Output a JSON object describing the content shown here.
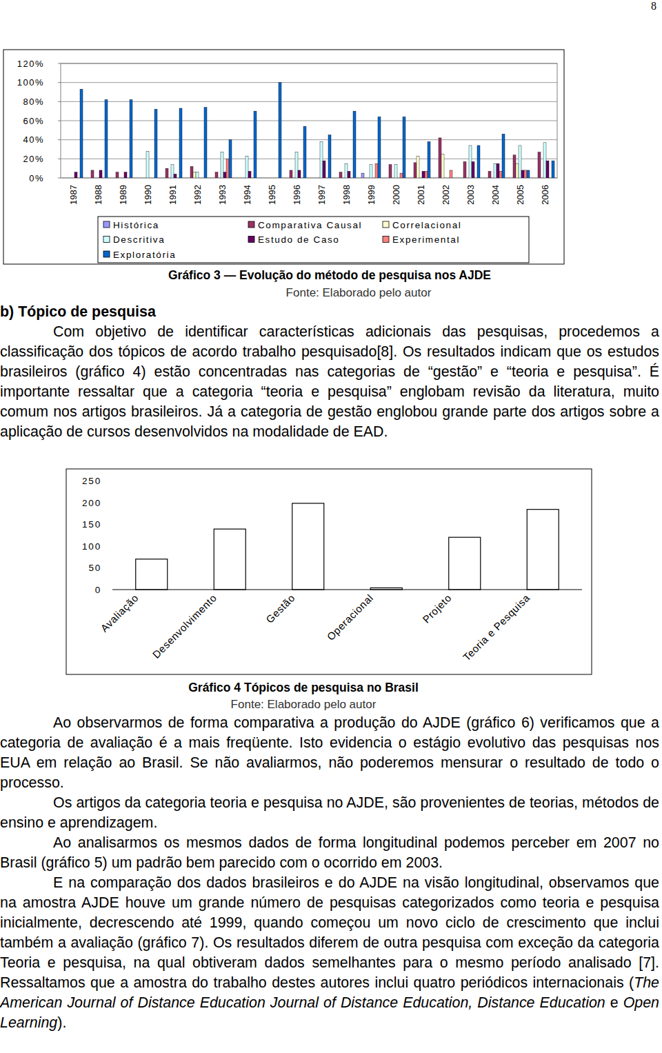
{
  "document": {
    "page_number": "8",
    "heading": "b) Tópico de pesquisa",
    "paragraphs_1": [
      "Com objetivo de identificar características adicionais das pesquisas, procedemos a classificação dos tópicos de acordo trabalho pesquisado[8]. Os resultados indicam que os estudos brasileiros (gráfico 4) estão concentradas nas categorias de “gestão” e “teoria e pesquisa”. É importante ressaltar que a categoria “teoria e pesquisa” englobam revisão da literatura, muito comum nos artigos brasileiros. Já a categoria de gestão englobou grande parte dos artigos sobre a aplicação de cursos desenvolvidos na modalidade de EAD."
    ],
    "paragraphs_2": [
      "Ao observarmos de forma comparativa a produção do AJDE (gráfico 6) verificamos que a categoria de avaliação é a mais freqüente. Isto evidencia o estágio evolutivo das pesquisas nos EUA em relação ao Brasil. Se não avaliarmos, não poderemos mensurar o resultado de todo o processo.",
      "Os artigos da categoria teoria e pesquisa no AJDE, são provenientes de teorias, métodos de ensino e aprendizagem.",
      "Ao analisarmos os mesmos dados de forma longitudinal podemos perceber em 2007 no Brasil (gráfico 5) um padrão bem parecido com o ocorrido em 2003.",
      [
        {
          "text": "E na comparação dos dados brasileiros e do AJDE na visão longitudinal, observamos que na amostra AJDE houve um grande número de pesquisas categorizados como teoria e pesquisa inicialmente, decrescendo até 1999, quando começou um novo ciclo de crescimento que inclui também a avaliação (gráfico 7). Os resultados diferem de outra pesquisa com exceção da categoria Teoria e pesquisa, na qual obtiveram dados semelhantes para o mesmo período analisado [7]. Ressaltamos que a amostra do trabalho destes autores inclui quatro periódicos internacionais (",
          "italic": false
        },
        {
          "text": "The American Journal of Distance Education Journal of Distance Education, Distance Education",
          "italic": true
        },
        {
          "text": " e ",
          "italic": false
        },
        {
          "text": "Open Learning",
          "italic": true
        },
        {
          "text": ").",
          "italic": false
        }
      ]
    ]
  },
  "chart_data": [
    {
      "type": "bar",
      "title": "Gráfico 3 — Evolução do método de pesquisa nos AJDE",
      "subtitle": "Fonte: Elaborado pelo autor",
      "categories": [
        "1987",
        "1988",
        "1989",
        "1990",
        "1991",
        "1992",
        "1993",
        "1994",
        "1995",
        "1996",
        "1997",
        "1998",
        "1999",
        "2000",
        "2001",
        "2002",
        "2003",
        "2004",
        "2005",
        "2006"
      ],
      "series": [
        {
          "name": "Histórica",
          "color": "#9999ff",
          "values": [
            0,
            0,
            0,
            0,
            0,
            0,
            0,
            0,
            0,
            0,
            0,
            0,
            5,
            0,
            0,
            0,
            0,
            0,
            0,
            0
          ]
        },
        {
          "name": "Comparativa Causal",
          "color": "#993366",
          "values": [
            0,
            8,
            6,
            0,
            10,
            12,
            6,
            0,
            0,
            8,
            0,
            6,
            0,
            14,
            16,
            42,
            17,
            7,
            24,
            27
          ]
        },
        {
          "name": "Correlacional",
          "color": "#ffffcc",
          "values": [
            0,
            0,
            0,
            0,
            0,
            6,
            0,
            0,
            0,
            0,
            0,
            0,
            0,
            0,
            23,
            25,
            0,
            0,
            15,
            0
          ]
        },
        {
          "name": "Descritiva",
          "color": "#ccffff",
          "values": [
            0,
            0,
            0,
            28,
            14,
            6,
            27,
            23,
            0,
            27,
            38,
            15,
            14,
            14,
            0,
            0,
            34,
            15,
            34,
            37
          ]
        },
        {
          "name": "Estudo de Caso",
          "color": "#660066",
          "values": [
            6,
            8,
            6,
            0,
            4,
            0,
            6,
            7,
            0,
            8,
            18,
            7,
            0,
            0,
            7,
            0,
            17,
            15,
            8,
            18
          ]
        },
        {
          "name": "Experimental",
          "color": "#ff8080",
          "values": [
            0,
            0,
            0,
            0,
            0,
            0,
            20,
            0,
            0,
            0,
            0,
            0,
            15,
            5,
            7,
            8,
            0,
            7,
            8,
            0
          ]
        },
        {
          "name": "Exploratória",
          "color": "#0066cc",
          "values": [
            93,
            82,
            82,
            72,
            73,
            74,
            40,
            70,
            100,
            54,
            45,
            70,
            64,
            64,
            38,
            0,
            34,
            46,
            8,
            18
          ]
        }
      ],
      "ylim": [
        0,
        120
      ],
      "yticks": [
        {
          "value": 0,
          "label": "0%"
        },
        {
          "value": 20,
          "label": "20%"
        },
        {
          "value": 40,
          "label": "40%"
        },
        {
          "value": 60,
          "label": "60%"
        },
        {
          "value": 80,
          "label": "80%"
        },
        {
          "value": 100,
          "label": "100%"
        },
        {
          "value": 120,
          "label": "120%"
        }
      ],
      "grid": true,
      "legend": "bottom"
    },
    {
      "type": "bar",
      "title": "Gráfico 4 Tópicos de pesquisa no Brasil",
      "subtitle": "Fonte: Elaborado pelo autor",
      "categories": [
        "Avaliação",
        "Desenvolvimento",
        "Gestão",
        "Operacional",
        "Projeto",
        "Teoria e Pesquisa"
      ],
      "values": [
        70,
        139,
        198,
        4,
        120,
        184
      ],
      "color": "#ffffff",
      "ylim": [
        0,
        250
      ],
      "yticks": [
        0,
        50,
        100,
        150,
        200,
        250
      ],
      "grid": false
    }
  ]
}
